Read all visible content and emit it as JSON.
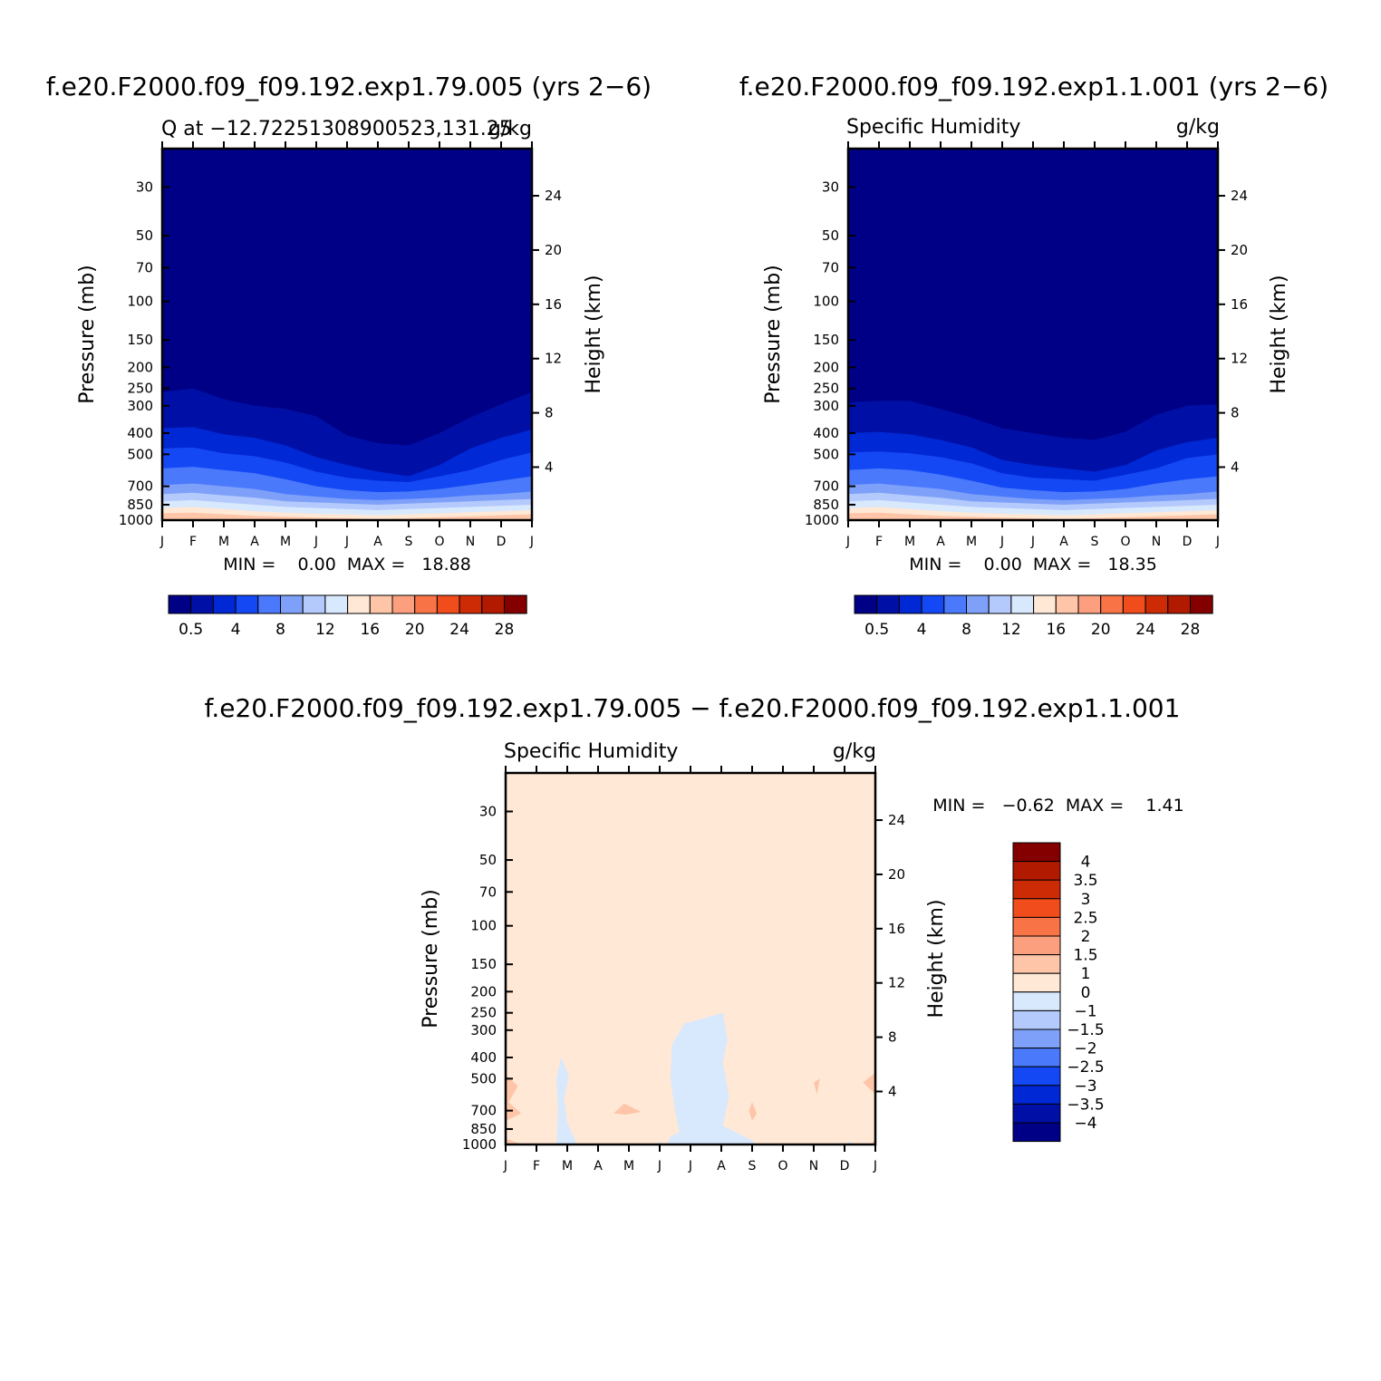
{
  "colors": {
    "scale": [
      "#000086",
      "#0010a6",
      "#0028d4",
      "#1448f4",
      "#4a79fb",
      "#7ea0f9",
      "#b4cafc",
      "#d8e8fd",
      "#ffe8d6",
      "#fec5a8",
      "#fc9f7e",
      "#f87446",
      "#f04c1c",
      "#cc2b06",
      "#b21a00",
      "#840000"
    ]
  },
  "chart_data": [
    {
      "type": "heatmap",
      "header": "f.e20.F2000.f09_f09.192.exp1.79.005 (yrs 2−6)",
      "title_left": "Q at −12.72251308900523,131.25",
      "title_right": "g/kg",
      "ylabel": "Pressure (mb)",
      "ylabel_right": "Height (km)",
      "y_ticks": [
        30,
        50,
        70,
        100,
        150,
        200,
        250,
        300,
        400,
        500,
        700,
        850,
        1000
      ],
      "y_right_ticks": [
        24,
        20,
        16,
        12,
        8,
        4
      ],
      "x_ticks": [
        "J",
        "F",
        "M",
        "A",
        "M",
        "J",
        "J",
        "A",
        "S",
        "O",
        "N",
        "D",
        "J"
      ],
      "stat_label": "MIN =    0.00  MAX =   18.88",
      "min": 0.0,
      "max": 18.88,
      "colorbar_labels": [
        "0.5",
        "4",
        "8",
        "12",
        "16",
        "20",
        "24",
        "28"
      ],
      "contour_pressure": [
        [
          260,
          250,
          280,
          300,
          310,
          335,
          410,
          445,
          455,
          400,
          340,
          295,
          260
        ],
        [
          380,
          375,
          405,
          420,
          455,
          515,
          560,
          600,
          630,
          560,
          470,
          420,
          385
        ],
        [
          470,
          465,
          495,
          510,
          545,
          600,
          640,
          660,
          670,
          630,
          590,
          530,
          490
        ],
        [
          580,
          570,
          590,
          610,
          650,
          700,
          730,
          745,
          740,
          720,
          690,
          660,
          630
        ],
        [
          690,
          680,
          700,
          720,
          760,
          780,
          800,
          810,
          800,
          790,
          770,
          760,
          740
        ],
        [
          760,
          750,
          770,
          790,
          820,
          830,
          840,
          850,
          840,
          830,
          820,
          810,
          800
        ],
        [
          820,
          810,
          830,
          850,
          870,
          880,
          890,
          900,
          890,
          880,
          870,
          860,
          850
        ],
        [
          880,
          870,
          890,
          910,
          925,
          935,
          940,
          950,
          940,
          930,
          920,
          910,
          900
        ],
        [
          930,
          925,
          940,
          955,
          965,
          975,
          980,
          990,
          980,
          970,
          960,
          950,
          940
        ]
      ]
    },
    {
      "type": "heatmap",
      "header": "f.e20.F2000.f09_f09.192.exp1.1.001 (yrs 2−6)",
      "title_left": "Specific Humidity",
      "title_right": "g/kg",
      "ylabel": "Pressure (mb)",
      "ylabel_right": "Height (km)",
      "y_ticks": [
        30,
        50,
        70,
        100,
        150,
        200,
        250,
        300,
        400,
        500,
        700,
        850,
        1000
      ],
      "y_right_ticks": [
        24,
        20,
        16,
        12,
        8,
        4
      ],
      "x_ticks": [
        "J",
        "F",
        "M",
        "A",
        "M",
        "J",
        "J",
        "A",
        "S",
        "O",
        "N",
        "D",
        "J"
      ],
      "stat_label": "MIN =    0.00  MAX =   18.35",
      "min": 0.0,
      "max": 18.35,
      "colorbar_labels": [
        "0.5",
        "4",
        "8",
        "12",
        "16",
        "20",
        "24",
        "28"
      ],
      "contour_pressure": [
        [
          290,
          285,
          285,
          310,
          340,
          380,
          400,
          420,
          430,
          395,
          330,
          300,
          295
        ],
        [
          400,
          395,
          405,
          430,
          465,
          530,
          560,
          580,
          600,
          560,
          480,
          440,
          420
        ],
        [
          490,
          485,
          495,
          515,
          550,
          610,
          640,
          650,
          660,
          620,
          580,
          520,
          500
        ],
        [
          590,
          580,
          590,
          620,
          660,
          710,
          730,
          745,
          740,
          720,
          680,
          650,
          630
        ],
        [
          690,
          680,
          700,
          720,
          760,
          780,
          800,
          810,
          800,
          790,
          770,
          760,
          740
        ],
        [
          760,
          750,
          770,
          790,
          820,
          830,
          840,
          850,
          840,
          830,
          820,
          810,
          800
        ],
        [
          820,
          810,
          830,
          850,
          870,
          880,
          890,
          900,
          890,
          880,
          870,
          860,
          850
        ],
        [
          880,
          870,
          890,
          910,
          925,
          935,
          940,
          950,
          940,
          930,
          920,
          910,
          900
        ],
        [
          930,
          925,
          940,
          955,
          965,
          975,
          980,
          990,
          980,
          970,
          960,
          950,
          940
        ]
      ]
    },
    {
      "type": "heatmap",
      "header": "f.e20.F2000.f09_f09.192.exp1.79.005 − f.e20.F2000.f09_f09.192.exp1.1.001",
      "title_left": "Specific Humidity",
      "title_right": "g/kg",
      "ylabel": "Pressure (mb)",
      "ylabel_right": "Height (km)",
      "y_ticks": [
        30,
        50,
        70,
        100,
        150,
        200,
        250,
        300,
        400,
        500,
        700,
        850,
        1000
      ],
      "y_right_ticks": [
        24,
        20,
        16,
        12,
        8,
        4
      ],
      "x_ticks": [
        "J",
        "F",
        "M",
        "A",
        "M",
        "J",
        "J",
        "A",
        "S",
        "O",
        "N",
        "D",
        "J"
      ],
      "stat_label": "MIN =   −0.62  MAX =    1.41",
      "min": -0.62,
      "max": 1.41,
      "colorbar_labels": [
        "4",
        "3.5",
        "3",
        "2.5",
        "2",
        "1.5",
        "1",
        "0",
        "−1",
        "−1.5",
        "−2",
        "−2.5",
        "−3",
        "−3.5",
        "−4"
      ],
      "background_color": "#ffe8d6",
      "negative_color": "#d8e8fd",
      "positive_color": "#fec5a8"
    }
  ]
}
